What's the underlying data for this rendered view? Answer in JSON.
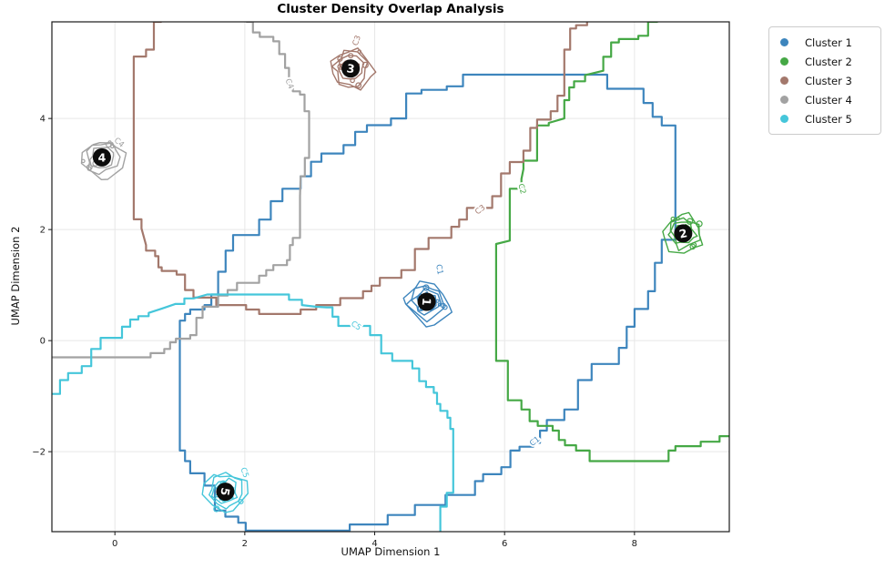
{
  "title": "Cluster Density Overlap Analysis",
  "axes": {
    "x": {
      "label": "UMAP Dimension 1",
      "ticks": [
        0,
        2,
        4,
        6,
        8
      ],
      "range": [
        -0.97,
        9.46
      ]
    },
    "y": {
      "label": "UMAP Dimension 2",
      "ticks": [
        -2,
        0,
        2,
        4
      ],
      "range": [
        -3.44,
        5.74
      ]
    }
  },
  "chart_data": {
    "type": "contour",
    "title": "Cluster Density Overlap Analysis",
    "xlabel": "UMAP Dimension 1",
    "ylabel": "UMAP Dimension 2",
    "xlim": [
      -0.97,
      9.46
    ],
    "ylim": [
      -3.44,
      5.74
    ],
    "grid": true,
    "legend_position": "upper right, outside axes",
    "clusters": [
      {
        "id": 1,
        "name": "Cluster 1",
        "color": "#3d85bd",
        "contour_label": "C1",
        "center": [
          4.8,
          0.7
        ],
        "badge": "1",
        "badge_rotation": 95,
        "blob_radius": 27,
        "closed": true,
        "outer_contour": [
          [
            5.61,
            4.79
          ],
          [
            7.58,
            4.79
          ],
          [
            8.14,
            4.28
          ],
          [
            8.42,
            4.03
          ],
          [
            8.63,
            3.72
          ],
          [
            8.63,
            2.23
          ],
          [
            8.42,
            1.4
          ],
          [
            8.21,
            0.89
          ],
          [
            8.0,
            0.25
          ],
          [
            7.76,
            -0.13
          ],
          [
            7.34,
            -0.71
          ],
          [
            6.92,
            -1.24
          ],
          [
            6.65,
            -1.62
          ],
          [
            6.44,
            -1.84
          ],
          [
            6.23,
            -1.98
          ],
          [
            5.95,
            -2.28
          ],
          [
            5.67,
            -2.53
          ],
          [
            5.42,
            -2.78
          ],
          [
            5.21,
            -2.78
          ],
          [
            4.97,
            -2.96
          ],
          [
            4.69,
            -2.96
          ],
          [
            4.55,
            -3.14
          ],
          [
            4.27,
            -3.14
          ],
          [
            4.13,
            -3.31
          ],
          [
            3.71,
            -3.31
          ],
          [
            3.52,
            -3.42
          ],
          [
            2.13,
            -3.42
          ],
          [
            1.9,
            -3.28
          ],
          [
            1.7,
            -3.06
          ],
          [
            1.38,
            -2.61
          ],
          [
            1.16,
            -2.17
          ],
          [
            1.0,
            -1.98
          ],
          [
            1.0,
            0.36
          ],
          [
            1.16,
            0.48
          ],
          [
            1.38,
            0.64
          ],
          [
            1.59,
            0.83
          ],
          [
            1.59,
            1.24
          ],
          [
            1.82,
            1.62
          ],
          [
            2.22,
            2.18
          ],
          [
            2.58,
            2.51
          ],
          [
            2.86,
            2.96
          ],
          [
            3.18,
            3.22
          ],
          [
            3.52,
            3.52
          ],
          [
            3.88,
            3.76
          ],
          [
            4.25,
            4.0
          ],
          [
            4.72,
            4.45
          ],
          [
            5.11,
            4.58
          ],
          [
            5.61,
            4.79
          ]
        ],
        "labels": [
          {
            "text": "C1",
            "x": 6.47,
            "y": -1.82,
            "rot": -38
          },
          {
            "text": "C1",
            "x": 4.99,
            "y": 1.28,
            "rot": 80
          }
        ]
      },
      {
        "id": 2,
        "name": "Cluster 2",
        "color": "#45a845",
        "contour_label": "C2",
        "center": [
          8.75,
          1.93
        ],
        "badge": "2",
        "badge_rotation": -12,
        "blob_radius": 24,
        "closed": false,
        "outer_contour": [
          [
            8.36,
            5.74
          ],
          [
            8.06,
            5.49
          ],
          [
            7.76,
            5.37
          ],
          [
            7.52,
            5.11
          ],
          [
            7.52,
            4.86
          ],
          [
            7.24,
            4.78
          ],
          [
            7.07,
            4.56
          ],
          [
            6.92,
            4.33
          ],
          [
            6.92,
            4.0
          ],
          [
            6.68,
            3.92
          ],
          [
            6.5,
            3.83
          ],
          [
            6.5,
            3.39
          ],
          [
            6.29,
            3.09
          ],
          [
            6.26,
            2.91
          ],
          [
            6.08,
            2.56
          ],
          [
            6.08,
            1.8
          ],
          [
            5.87,
            1.74
          ],
          [
            5.87,
            -0.3
          ],
          [
            6.05,
            -0.43
          ],
          [
            6.05,
            -0.91
          ],
          [
            6.26,
            -1.24
          ],
          [
            6.51,
            -1.45
          ],
          [
            6.74,
            -1.62
          ],
          [
            6.93,
            -1.79
          ],
          [
            7.1,
            -1.98
          ],
          [
            7.52,
            -2.17
          ],
          [
            8.42,
            -2.17
          ],
          [
            8.63,
            -1.98
          ],
          [
            9.02,
            -1.82
          ],
          [
            9.31,
            -1.82
          ],
          [
            9.47,
            -1.62
          ]
        ],
        "labels": [
          {
            "text": "C2",
            "x": 6.26,
            "y": 2.73,
            "rot": 75
          }
        ]
      },
      {
        "id": 3,
        "name": "Cluster 3",
        "color": "#a3786c",
        "contour_label": "C3",
        "center": [
          3.63,
          4.9
        ],
        "badge": "3",
        "badge_rotation": 8,
        "blob_radius": 25,
        "closed": false,
        "outer_contour": [
          [
            0.72,
            5.74
          ],
          [
            0.48,
            5.24
          ],
          [
            0.29,
            4.99
          ],
          [
            0.29,
            2.35
          ],
          [
            0.41,
            2.02
          ],
          [
            0.48,
            1.72
          ],
          [
            0.62,
            1.52
          ],
          [
            0.72,
            1.32
          ],
          [
            0.95,
            1.19
          ],
          [
            1.21,
            0.91
          ],
          [
            1.56,
            0.64
          ],
          [
            2.02,
            0.64
          ],
          [
            2.22,
            0.48
          ],
          [
            2.86,
            0.48
          ],
          [
            3.1,
            0.64
          ],
          [
            3.47,
            0.64
          ],
          [
            3.82,
            0.89
          ],
          [
            4.08,
            0.99
          ],
          [
            4.41,
            1.27
          ],
          [
            4.83,
            1.65
          ],
          [
            5.18,
            2.05
          ],
          [
            5.42,
            2.18
          ],
          [
            5.81,
            2.6
          ],
          [
            6.08,
            3.01
          ],
          [
            6.29,
            3.42
          ],
          [
            6.5,
            3.83
          ],
          [
            6.71,
            4.13
          ],
          [
            6.92,
            4.41
          ],
          [
            6.92,
            5.24
          ],
          [
            7.1,
            5.62
          ],
          [
            7.27,
            5.74
          ]
        ],
        "labels": [
          {
            "text": "C3",
            "x": 5.63,
            "y": 2.35,
            "rot": -38
          },
          {
            "text": "C3",
            "x": 3.73,
            "y": 5.4,
            "rot": -70
          }
        ]
      },
      {
        "id": 4,
        "name": "Cluster 4",
        "color": "#a2a2a2",
        "contour_label": "C4",
        "center": [
          -0.2,
          3.3
        ],
        "badge": "4",
        "badge_rotation": 0,
        "blob_radius": 24,
        "closed": false,
        "outer_contour": [
          [
            2.02,
            5.74
          ],
          [
            2.23,
            5.55
          ],
          [
            2.44,
            5.39
          ],
          [
            2.62,
            5.16
          ],
          [
            2.62,
            4.91
          ],
          [
            2.74,
            4.55
          ],
          [
            2.85,
            4.43
          ],
          [
            2.99,
            4.13
          ],
          [
            2.99,
            3.29
          ],
          [
            2.86,
            2.96
          ],
          [
            2.85,
            2.6
          ],
          [
            2.85,
            1.98
          ],
          [
            2.74,
            1.72
          ],
          [
            2.65,
            1.45
          ],
          [
            2.44,
            1.27
          ],
          [
            2.22,
            1.17
          ],
          [
            1.88,
            0.91
          ],
          [
            1.59,
            0.81
          ],
          [
            1.35,
            0.41
          ],
          [
            1.16,
            0.1
          ],
          [
            0.94,
            -0.03
          ],
          [
            0.76,
            -0.15
          ],
          [
            0.55,
            -0.3
          ],
          [
            -0.97,
            -0.3
          ]
        ],
        "labels": [
          {
            "text": "C4",
            "x": 2.68,
            "y": 4.62,
            "rot": 68
          },
          {
            "text": "C4",
            "x": 0.06,
            "y": 3.56,
            "rot": 40
          }
        ]
      },
      {
        "id": 5,
        "name": "Cluster 5",
        "color": "#45c6da",
        "contour_label": "C5",
        "center": [
          1.7,
          -2.72
        ],
        "badge": "5",
        "badge_rotation": 100,
        "blob_radius": 25,
        "closed": false,
        "outer_contour": [
          [
            -0.97,
            -0.96
          ],
          [
            -0.72,
            -0.71
          ],
          [
            -0.51,
            -0.46
          ],
          [
            -0.22,
            -0.15
          ],
          [
            0.11,
            0.25
          ],
          [
            0.36,
            0.38
          ],
          [
            0.52,
            0.5
          ],
          [
            0.73,
            0.58
          ],
          [
            0.93,
            0.66
          ],
          [
            1.21,
            0.76
          ],
          [
            1.42,
            0.83
          ],
          [
            2.68,
            0.83
          ],
          [
            2.88,
            0.64
          ],
          [
            3.09,
            0.61
          ],
          [
            3.26,
            0.6
          ],
          [
            3.44,
            0.43
          ],
          [
            3.93,
            0.1
          ],
          [
            4.27,
            -0.23
          ],
          [
            4.58,
            -0.5
          ],
          [
            4.79,
            -0.73
          ],
          [
            4.91,
            -0.94
          ],
          [
            5.01,
            -1.14
          ],
          [
            5.12,
            -1.39
          ],
          [
            5.21,
            -1.59
          ],
          [
            5.21,
            -2.74
          ],
          [
            5.01,
            -2.99
          ],
          [
            5.01,
            -3.44
          ]
        ],
        "labels": [
          {
            "text": "C5",
            "x": 3.71,
            "y": 0.26,
            "rot": 33
          },
          {
            "text": "C5",
            "x": 1.99,
            "y": -2.38,
            "rot": 70
          }
        ]
      }
    ]
  }
}
